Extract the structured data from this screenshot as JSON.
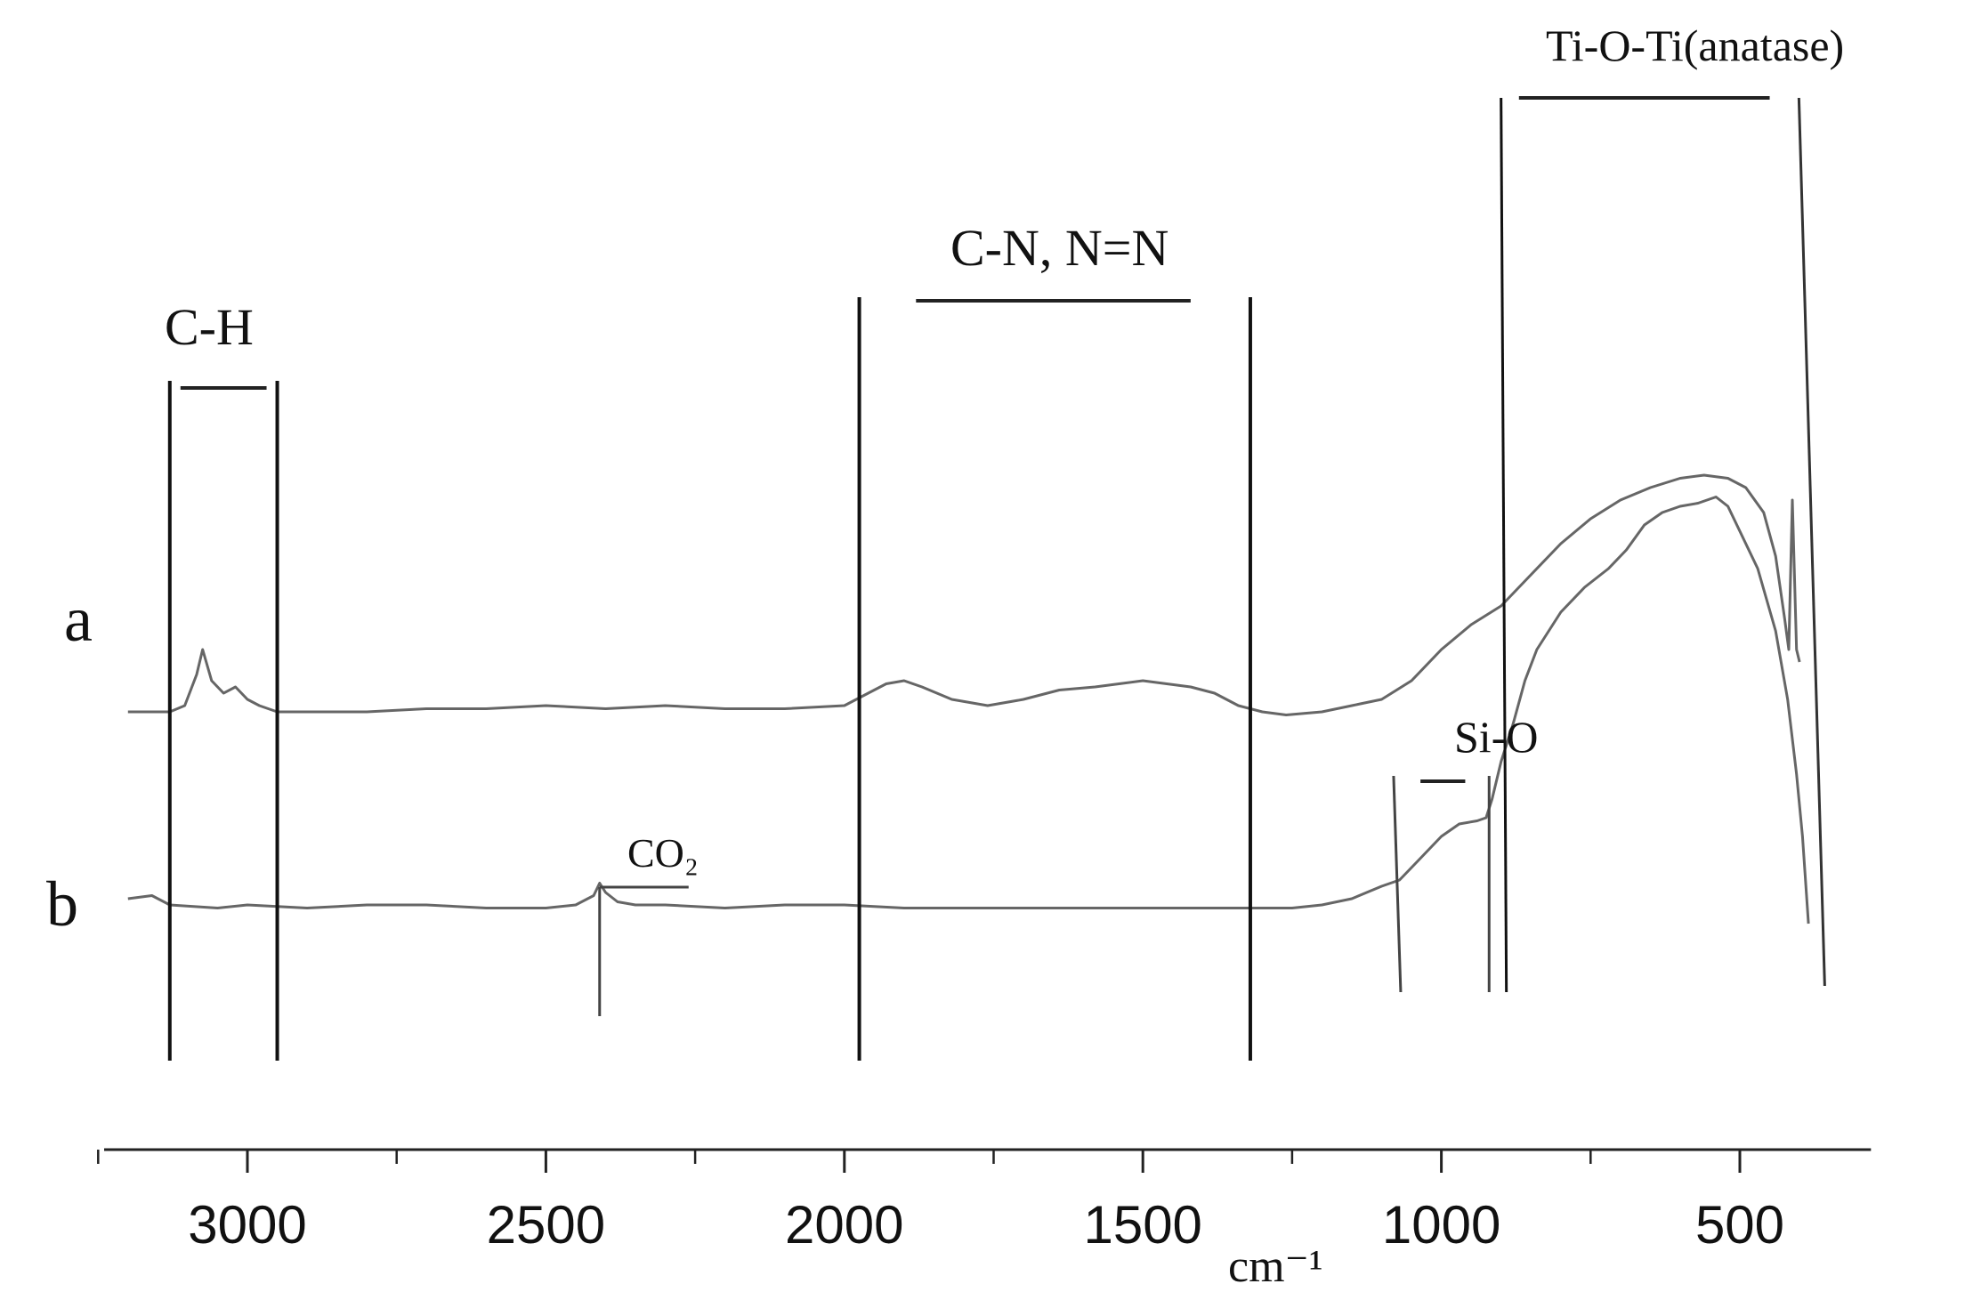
{
  "chart_data": {
    "type": "line",
    "title": "",
    "xlabel": "cm⁻¹",
    "ylabel": "",
    "x_reversed": true,
    "xlim": [
      3240,
      340
    ],
    "xticks": [
      3000,
      2500,
      2000,
      1500,
      1000,
      500
    ],
    "tick_labels": [
      "3000",
      "2500",
      "2000",
      "1500",
      "1000",
      "500"
    ],
    "grid": false,
    "y_units": "relative transmittance (arbitrary, no axis shown)",
    "series": [
      {
        "name": "a",
        "line_color": "#666666",
        "points": [
          [
            3200,
            0.5
          ],
          [
            3130,
            0.5
          ],
          [
            3105,
            0.51
          ],
          [
            3085,
            0.56
          ],
          [
            3075,
            0.6
          ],
          [
            3060,
            0.55
          ],
          [
            3040,
            0.53
          ],
          [
            3020,
            0.54
          ],
          [
            3000,
            0.52
          ],
          [
            2980,
            0.51
          ],
          [
            2950,
            0.5
          ],
          [
            2900,
            0.5
          ],
          [
            2800,
            0.5
          ],
          [
            2700,
            0.505
          ],
          [
            2600,
            0.505
          ],
          [
            2500,
            0.51
          ],
          [
            2400,
            0.505
          ],
          [
            2300,
            0.51
          ],
          [
            2200,
            0.505
          ],
          [
            2100,
            0.505
          ],
          [
            2000,
            0.51
          ],
          [
            1960,
            0.53
          ],
          [
            1930,
            0.545
          ],
          [
            1900,
            0.55
          ],
          [
            1870,
            0.54
          ],
          [
            1820,
            0.52
          ],
          [
            1760,
            0.51
          ],
          [
            1700,
            0.52
          ],
          [
            1640,
            0.535
          ],
          [
            1580,
            0.54
          ],
          [
            1540,
            0.545
          ],
          [
            1500,
            0.55
          ],
          [
            1460,
            0.545
          ],
          [
            1420,
            0.54
          ],
          [
            1380,
            0.53
          ],
          [
            1340,
            0.51
          ],
          [
            1300,
            0.5
          ],
          [
            1260,
            0.495
          ],
          [
            1200,
            0.5
          ],
          [
            1150,
            0.51
          ],
          [
            1100,
            0.52
          ],
          [
            1050,
            0.55
          ],
          [
            1000,
            0.6
          ],
          [
            950,
            0.64
          ],
          [
            900,
            0.67
          ],
          [
            850,
            0.72
          ],
          [
            800,
            0.77
          ],
          [
            750,
            0.81
          ],
          [
            700,
            0.84
          ],
          [
            650,
            0.86
          ],
          [
            600,
            0.875
          ],
          [
            560,
            0.88
          ],
          [
            520,
            0.875
          ],
          [
            490,
            0.86
          ],
          [
            460,
            0.82
          ],
          [
            440,
            0.75
          ],
          [
            425,
            0.65
          ],
          [
            418,
            0.6
          ],
          [
            412,
            0.84
          ],
          [
            405,
            0.6
          ],
          [
            400,
            0.58
          ]
        ]
      },
      {
        "name": "b",
        "line_color": "#666666",
        "points": [
          [
            3200,
            0.2
          ],
          [
            3160,
            0.205
          ],
          [
            3130,
            0.19
          ],
          [
            3050,
            0.185
          ],
          [
            3000,
            0.19
          ],
          [
            2900,
            0.185
          ],
          [
            2800,
            0.19
          ],
          [
            2700,
            0.19
          ],
          [
            2600,
            0.185
          ],
          [
            2500,
            0.185
          ],
          [
            2450,
            0.19
          ],
          [
            2420,
            0.205
          ],
          [
            2410,
            0.225
          ],
          [
            2400,
            0.21
          ],
          [
            2380,
            0.195
          ],
          [
            2350,
            0.19
          ],
          [
            2300,
            0.19
          ],
          [
            2200,
            0.185
          ],
          [
            2100,
            0.19
          ],
          [
            2000,
            0.19
          ],
          [
            1900,
            0.185
          ],
          [
            1800,
            0.185
          ],
          [
            1700,
            0.185
          ],
          [
            1600,
            0.185
          ],
          [
            1500,
            0.185
          ],
          [
            1400,
            0.185
          ],
          [
            1300,
            0.185
          ],
          [
            1250,
            0.185
          ],
          [
            1200,
            0.19
          ],
          [
            1150,
            0.2
          ],
          [
            1100,
            0.22
          ],
          [
            1070,
            0.23
          ],
          [
            1040,
            0.26
          ],
          [
            1000,
            0.3
          ],
          [
            970,
            0.32
          ],
          [
            940,
            0.325
          ],
          [
            925,
            0.33
          ],
          [
            915,
            0.36
          ],
          [
            900,
            0.42
          ],
          [
            880,
            0.48
          ],
          [
            860,
            0.55
          ],
          [
            840,
            0.6
          ],
          [
            800,
            0.66
          ],
          [
            760,
            0.7
          ],
          [
            720,
            0.73
          ],
          [
            690,
            0.76
          ],
          [
            660,
            0.8
          ],
          [
            630,
            0.82
          ],
          [
            600,
            0.83
          ],
          [
            570,
            0.835
          ],
          [
            540,
            0.845
          ],
          [
            520,
            0.83
          ],
          [
            500,
            0.79
          ],
          [
            470,
            0.73
          ],
          [
            440,
            0.63
          ],
          [
            420,
            0.52
          ],
          [
            405,
            0.4
          ],
          [
            395,
            0.3
          ],
          [
            385,
            0.16
          ]
        ]
      }
    ],
    "series_labels": [
      "a",
      "b"
    ],
    "band_annotations": [
      {
        "label": "C-H",
        "from": 3130,
        "to": 2950
      },
      {
        "label": "C-N, N=N",
        "from": 1975,
        "to": 1320
      },
      {
        "label": "Si-O",
        "from": 1080,
        "to": 920
      },
      {
        "label": "Ti-O-Ti(anatase)",
        "from": 900,
        "to": 410
      }
    ],
    "peak_annotations": [
      {
        "label": "CO₂",
        "x": 2410
      }
    ]
  }
}
